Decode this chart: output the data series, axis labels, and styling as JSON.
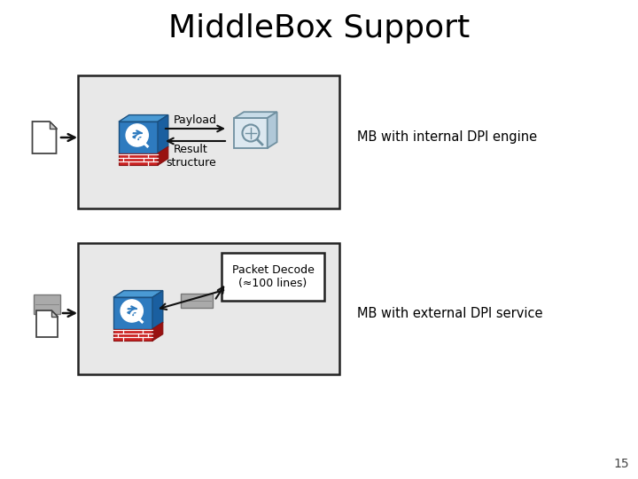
{
  "title": "MiddleBox Support",
  "title_fontsize": 26,
  "bg_color": "#ffffff",
  "box_bg": "#e8e8e8",
  "box_border": "#222222",
  "label_payload": "Payload",
  "label_result": "Result\nstructure",
  "label_packet": "Packet Decode\n(≈100 lines)",
  "label_mb_internal": "MB with internal DPI engine",
  "label_mb_external": "MB with external DPI service",
  "page_number": "15",
  "firewall_blue_dark": "#1a5fa0",
  "firewall_blue_mid": "#2e7bbf",
  "firewall_blue_light": "#4a9ad4",
  "firewall_red": "#cc2222",
  "firewall_red_dark": "#991111",
  "arrow_color": "#111111",
  "dpi_box_face": "#dce8f0",
  "dpi_box_side": "#b0c8d8",
  "dpi_box_top": "#c8dce8"
}
